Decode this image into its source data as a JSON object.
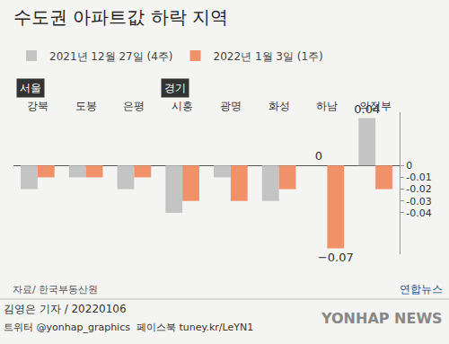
{
  "chart_data": {
    "type": "bar",
    "title": "수도권 아파트값 하락 지역",
    "categories": [
      "강북",
      "도봉",
      "은평",
      "시흥",
      "광명",
      "화성",
      "하남",
      "의정부"
    ],
    "series": [
      {
        "name": "2021년 12월 27일 (4주)",
        "color": "#c4c4c4",
        "values": [
          -0.02,
          -0.01,
          -0.02,
          -0.04,
          -0.01,
          -0.03,
          0,
          0.04
        ],
        "value_labels": [
          null,
          null,
          null,
          null,
          null,
          null,
          "0",
          "0.04"
        ]
      },
      {
        "name": "2022년 1월 3일 (1주)",
        "color": "#f0916a",
        "values": [
          -0.01,
          -0.01,
          -0.01,
          -0.03,
          -0.03,
          -0.02,
          -0.07,
          -0.02
        ],
        "value_labels": [
          null,
          null,
          null,
          null,
          null,
          null,
          "−0.07",
          null
        ]
      }
    ],
    "ylim": [
      -0.075,
      0.045
    ],
    "yticks": [
      0,
      -0.01,
      -0.02,
      -0.03,
      -0.04
    ],
    "grid": false,
    "legend": "top left",
    "groups": [
      {
        "label": "서울",
        "categories": [
          "강북",
          "도봉",
          "은평"
        ]
      },
      {
        "label": "경기",
        "categories": [
          "시흥",
          "광명",
          "화성",
          "하남",
          "의정부"
        ]
      }
    ],
    "source": "자료/ 한국부동산원",
    "credits": [
      "김영은 기자 / 20220106",
      "트위터 @yonhap_graphics  페이스북 tuney.kr/LeYN1"
    ],
    "logo": [
      "연합뉴스",
      "YONHAP NEWS"
    ]
  }
}
